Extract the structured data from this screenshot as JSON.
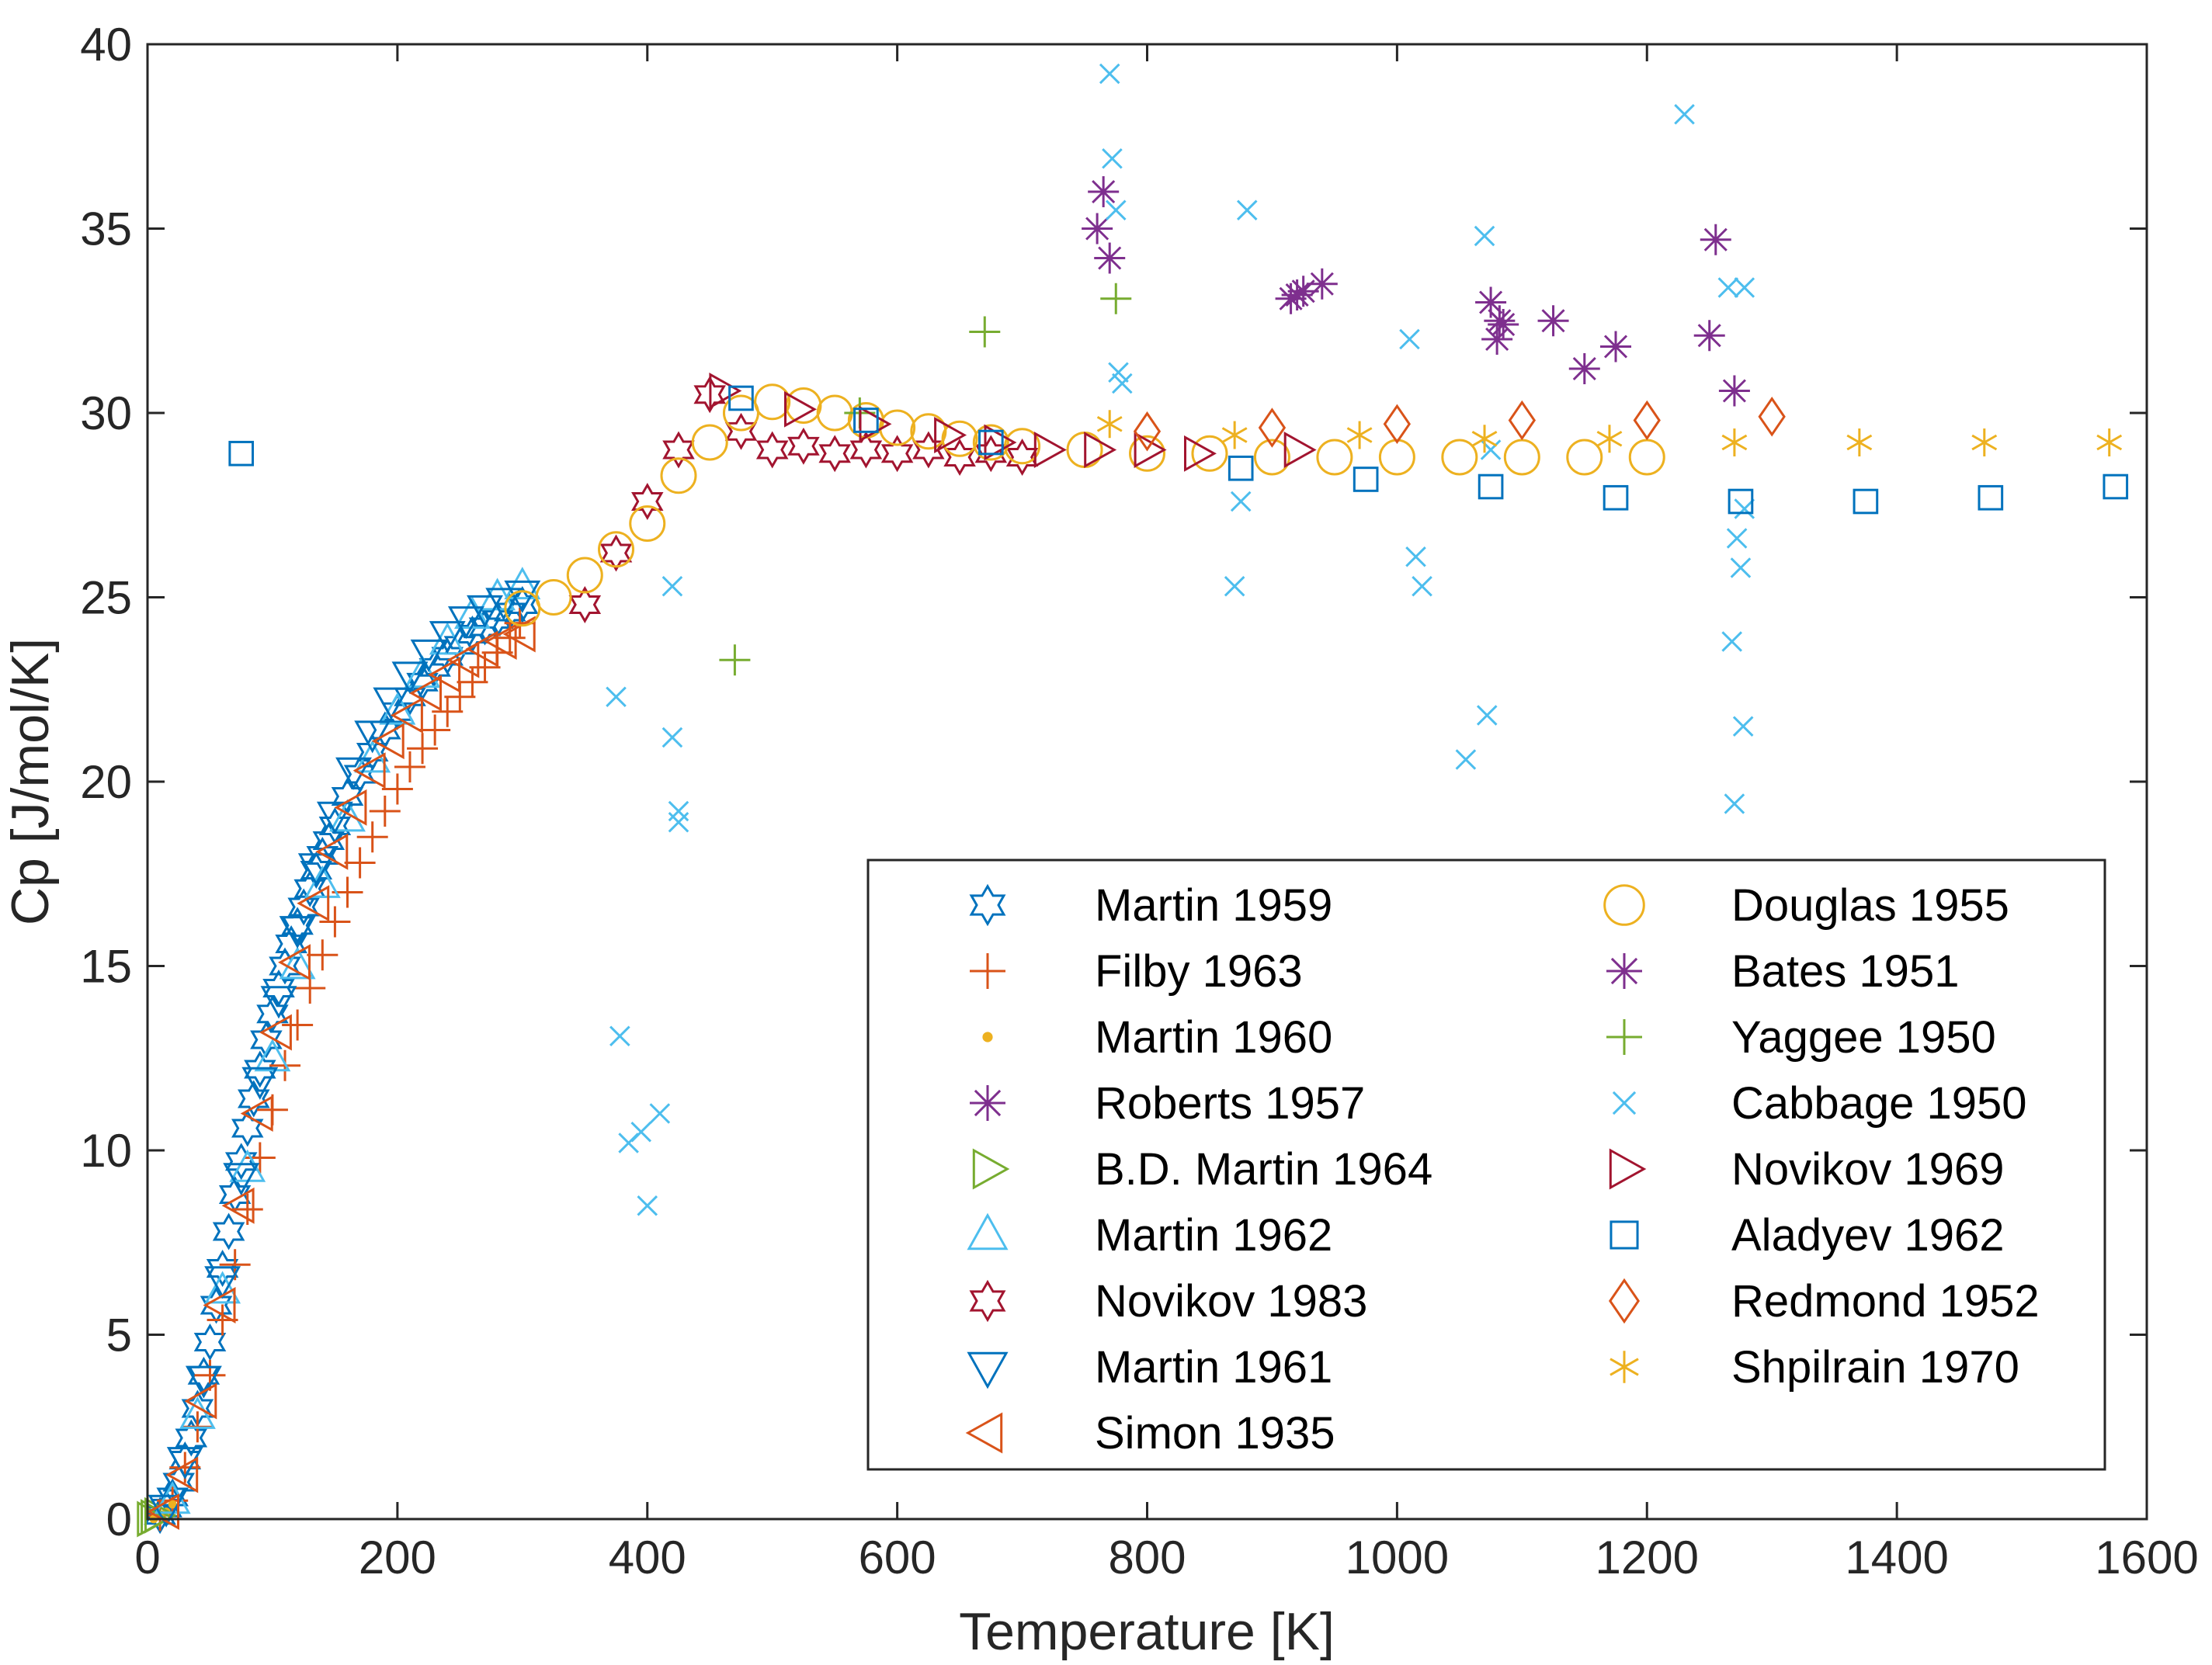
{
  "chart_data": {
    "type": "scatter",
    "xlabel": "Temperature [K]",
    "ylabel": "Cp [J/mol/K]",
    "xlim": [
      0,
      1600
    ],
    "ylim": [
      0,
      40
    ],
    "xticks": [
      0,
      200,
      400,
      600,
      800,
      1000,
      1200,
      1400,
      1600
    ],
    "yticks": [
      0,
      5,
      10,
      15,
      20,
      25,
      30,
      35,
      40
    ],
    "grid": false,
    "legend_position": "lower-right",
    "series": [
      {
        "name": "Martin 1959",
        "marker": "hexagram",
        "color": "#0072BD",
        "x": [
          10,
          15,
          20,
          25,
          30,
          35,
          40,
          45,
          50,
          55,
          60,
          65,
          70,
          75,
          80,
          85,
          90,
          95,
          100,
          105,
          110,
          115,
          120,
          125,
          130,
          135,
          140,
          145,
          150,
          160,
          170,
          180,
          190,
          200,
          210,
          220,
          230,
          240,
          250,
          260,
          270,
          280,
          290,
          300
        ],
        "y": [
          0.1,
          0.3,
          0.6,
          1.0,
          1.6,
          2.2,
          3.0,
          3.9,
          4.8,
          5.8,
          6.8,
          7.8,
          8.8,
          9.7,
          10.6,
          11.4,
          12.2,
          13.0,
          13.7,
          14.4,
          15.0,
          15.6,
          16.1,
          16.6,
          17.1,
          17.6,
          18.0,
          18.4,
          18.8,
          19.6,
          20.2,
          20.8,
          21.4,
          21.9,
          22.3,
          22.7,
          23.1,
          23.4,
          23.7,
          24.0,
          24.2,
          24.4,
          24.6,
          24.8
        ]
      },
      {
        "name": "Filby 1963",
        "marker": "plus",
        "color": "#D95319",
        "x": [
          10,
          20,
          30,
          40,
          50,
          60,
          70,
          80,
          90,
          100,
          110,
          120,
          130,
          140,
          150,
          160,
          170,
          180,
          190,
          200,
          210,
          220,
          230,
          240,
          250,
          260,
          270,
          280,
          290,
          298
        ],
        "y": [
          0.1,
          0.5,
          1.4,
          2.5,
          3.9,
          5.4,
          6.9,
          8.4,
          9.8,
          11.1,
          12.3,
          13.4,
          14.4,
          15.3,
          16.2,
          17.0,
          17.8,
          18.5,
          19.2,
          19.8,
          20.4,
          20.9,
          21.4,
          21.9,
          22.3,
          22.7,
          23.1,
          23.5,
          23.9,
          24.3
        ]
      },
      {
        "name": "Martin 1960",
        "marker": "point",
        "color": "#EDB120",
        "x": [
          5,
          10,
          15,
          20
        ],
        "y": [
          0.0,
          0.1,
          0.2,
          0.4
        ]
      },
      {
        "name": "Roberts 1957",
        "marker": "asterisk",
        "color": "#7E2F8E",
        "x": [],
        "y": []
      },
      {
        "name": "B.D. Martin 1964",
        "marker": "triangle-right",
        "color": "#77AC30",
        "x": [
          2,
          5,
          8
        ],
        "y": [
          0.0,
          0.05,
          0.1
        ]
      },
      {
        "name": "Martin 1962",
        "marker": "triangle-up",
        "color": "#4DBEEE",
        "x": [
          20,
          40,
          60,
          80,
          100,
          120,
          140,
          160,
          180,
          200,
          220,
          240,
          260,
          280,
          300
        ],
        "y": [
          0.5,
          2.8,
          6.2,
          9.5,
          12.5,
          15.0,
          17.2,
          19.0,
          20.6,
          21.9,
          22.9,
          23.8,
          24.5,
          25.0,
          25.3
        ]
      },
      {
        "name": "Novikov 1983",
        "marker": "hexagram",
        "color": "#A2142F",
        "x": [
          350,
          375,
          400,
          425,
          450,
          475,
          500,
          525,
          550,
          575,
          600,
          625,
          650,
          675,
          700
        ],
        "y": [
          24.8,
          26.2,
          27.6,
          29.0,
          30.5,
          29.5,
          29.0,
          29.1,
          28.9,
          29.0,
          28.9,
          29.0,
          28.8,
          28.9,
          28.8
        ]
      },
      {
        "name": "Martin 1961",
        "marker": "triangle-down",
        "color": "#0072BD",
        "x": [
          15,
          30,
          45,
          60,
          75,
          90,
          105,
          120,
          135,
          150,
          165,
          180,
          195,
          210,
          225,
          240,
          255,
          270,
          285,
          300
        ],
        "y": [
          0.3,
          1.6,
          3.8,
          6.5,
          9.3,
          11.9,
          14.1,
          16.0,
          17.7,
          19.1,
          20.3,
          21.3,
          22.2,
          22.9,
          23.5,
          24.0,
          24.4,
          24.7,
          24.9,
          25.1
        ]
      },
      {
        "name": "Simon 1935",
        "marker": "triangle-left",
        "color": "#D95319",
        "x": [
          15,
          30,
          45,
          60,
          75,
          90,
          105,
          120,
          135,
          150,
          165,
          180,
          195,
          210,
          225,
          240,
          255,
          270,
          285,
          300
        ],
        "y": [
          0.2,
          1.2,
          3.2,
          5.8,
          8.5,
          11.0,
          13.2,
          15.1,
          16.7,
          18.1,
          19.3,
          20.3,
          21.1,
          21.8,
          22.4,
          22.9,
          23.3,
          23.6,
          23.8,
          24.0
        ]
      },
      {
        "name": "Douglas 1955",
        "marker": "circle",
        "color": "#EDB120",
        "x": [
          300,
          325,
          350,
          375,
          400,
          425,
          450,
          475,
          500,
          525,
          550,
          575,
          600,
          625,
          650,
          675,
          700,
          750,
          800,
          850,
          900,
          950,
          1000,
          1050,
          1100,
          1150,
          1200
        ],
        "y": [
          24.7,
          25.0,
          25.6,
          26.3,
          27.0,
          28.3,
          29.2,
          30.0,
          30.3,
          30.2,
          30.0,
          29.8,
          29.6,
          29.5,
          29.3,
          29.2,
          29.1,
          29.0,
          28.9,
          28.9,
          28.8,
          28.8,
          28.8,
          28.8,
          28.8,
          28.8,
          28.8
        ]
      },
      {
        "name": "Bates 1951",
        "marker": "asterisk",
        "color": "#7E2F8E",
        "x": [
          760,
          765,
          770,
          915,
          920,
          925,
          940,
          1075,
          1080,
          1082,
          1085,
          1125,
          1150,
          1175,
          1250,
          1255,
          1270
        ],
        "y": [
          35.0,
          36.0,
          34.2,
          33.1,
          33.2,
          33.3,
          33.5,
          33.0,
          32.0,
          32.5,
          32.4,
          32.5,
          31.2,
          31.8,
          32.1,
          34.7,
          30.6
        ]
      },
      {
        "name": "Yaggee 1950",
        "marker": "plus",
        "color": "#77AC30",
        "x": [
          470,
          570,
          670,
          775
        ],
        "y": [
          23.3,
          30.0,
          32.2,
          33.1
        ]
      },
      {
        "name": "Cabbage 1950",
        "marker": "x",
        "color": "#4DBEEE",
        "x": [
          375,
          378,
          385,
          395,
          400,
          410,
          420,
          420,
          425,
          425,
          770,
          772,
          775,
          777,
          780,
          870,
          875,
          880,
          1010,
          1015,
          1020,
          1055,
          1070,
          1072,
          1075,
          1230,
          1265,
          1268,
          1270,
          1272,
          1275,
          1277,
          1278,
          1278
        ],
        "y": [
          22.3,
          13.1,
          10.2,
          10.5,
          8.5,
          11.0,
          25.3,
          21.2,
          19.2,
          18.9,
          39.2,
          36.9,
          35.5,
          31.1,
          30.8,
          25.3,
          27.6,
          35.5,
          32.0,
          26.1,
          25.3,
          20.6,
          34.8,
          21.8,
          29.0,
          38.1,
          33.4,
          23.8,
          19.4,
          26.6,
          25.8,
          21.5,
          27.4,
          33.4
        ]
      },
      {
        "name": "Novikov 1969",
        "marker": "triangle-right",
        "color": "#A2142F",
        "x": [
          460,
          520,
          580,
          640,
          680,
          720,
          760,
          800,
          840,
          920
        ],
        "y": [
          30.6,
          30.1,
          29.7,
          29.4,
          29.2,
          29.0,
          29.0,
          29.0,
          28.9,
          29.0
        ]
      },
      {
        "name": "Aladyev 1962",
        "marker": "square",
        "color": "#0072BD",
        "x": [
          75,
          475,
          575,
          675,
          875,
          975,
          1075,
          1175,
          1275,
          1375,
          1475,
          1575
        ],
        "y": [
          28.9,
          30.4,
          29.8,
          29.2,
          28.5,
          28.2,
          28.0,
          27.7,
          27.6,
          27.6,
          27.7,
          28.0
        ]
      },
      {
        "name": "Redmond 1952",
        "marker": "diamond",
        "color": "#D95319",
        "x": [
          800,
          900,
          1000,
          1100,
          1200,
          1300
        ],
        "y": [
          29.5,
          29.6,
          29.7,
          29.8,
          29.8,
          29.9
        ]
      },
      {
        "name": "Shpilrain 1970",
        "marker": "asterisk6",
        "color": "#EDB120",
        "x": [
          770,
          870,
          970,
          1070,
          1170,
          1270,
          1370,
          1470,
          1570
        ],
        "y": [
          29.7,
          29.4,
          29.4,
          29.3,
          29.3,
          29.2,
          29.2,
          29.2,
          29.2
        ]
      }
    ]
  }
}
